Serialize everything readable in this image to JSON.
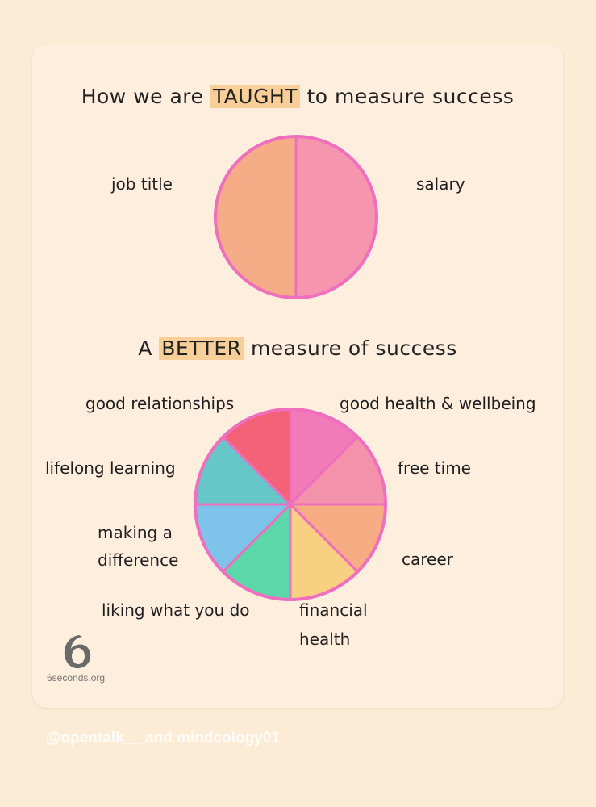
{
  "chart_data": [
    {
      "type": "pie",
      "title_pre": "How we are ",
      "title_hl": "TAUGHT",
      "title_post": " to measure success",
      "slices": [
        {
          "label": "job title",
          "value": 50,
          "color": "#f6ac86"
        },
        {
          "label": "salary",
          "value": 50,
          "color": "#f596ae"
        }
      ]
    },
    {
      "type": "pie",
      "title_pre": "A ",
      "title_hl": "BETTER",
      "title_post": " measure of success",
      "slices": [
        {
          "label": "good health & wellbeing",
          "value": 1,
          "color": "#f27ab9"
        },
        {
          "label": "free time",
          "value": 1,
          "color": "#f592ab"
        },
        {
          "label": "career",
          "value": 1,
          "color": "#f7ac84"
        },
        {
          "label": "financial health",
          "value": 1,
          "color": "#f9cf82"
        },
        {
          "label": "liking what you do",
          "value": 1,
          "color": "#5cd7a9"
        },
        {
          "label": "making a difference",
          "value": 1,
          "color": "#7ec3e9"
        },
        {
          "label": "lifelong learning",
          "value": 1,
          "color": "#67c6c7"
        },
        {
          "label": "good relationships",
          "value": 1,
          "color": "#f36176"
        }
      ]
    }
  ],
  "logo": {
    "text": "6seconds.org",
    "icon": "six-seconds-logo-icon"
  },
  "credit": "@opentalk__ and mindcology01",
  "colors": {
    "ring": "#ee6fbd",
    "highlight": "#f8cf98",
    "card": "#fdeede"
  }
}
